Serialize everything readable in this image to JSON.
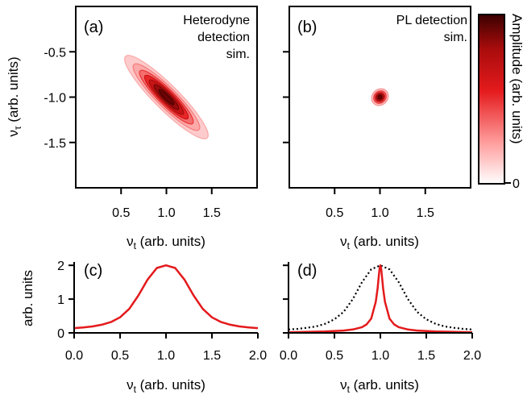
{
  "chart_data": [
    {
      "panel": "(a)",
      "type": "contour",
      "annotation": [
        "Heterodyne",
        "detection",
        "sim."
      ],
      "xlabel": {
        "sym": "ν",
        "sub": "t",
        "unit": " (arb. units)"
      },
      "ylabel": {
        "sym": "ν",
        "sub": "τ",
        "unit": " (arb. units)"
      },
      "xlim": [
        0,
        2
      ],
      "ylim": [
        -2,
        0
      ],
      "xticks": [
        0.5,
        1.0,
        1.5
      ],
      "xtick_labels": [
        "0.5",
        "1.0",
        "1.5"
      ],
      "yticks": [
        -0.5,
        -1.0,
        -1.5
      ],
      "ytick_labels": [
        "-0.5",
        "-1.0",
        "-1.5"
      ],
      "peak": {
        "x": 1.0,
        "y": -1.0
      },
      "diagonal_halfwidth": 0.45,
      "antidiagonal_halfwidth": 0.06,
      "contour_levels": [
        0.08,
        0.2,
        0.35,
        0.5,
        0.65,
        0.8,
        0.92
      ]
    },
    {
      "panel": "(b)",
      "type": "contour",
      "annotation": [
        "PL detection",
        "sim."
      ],
      "xlabel": {
        "sym": "ν",
        "sub": "t",
        "unit": " (arb. units)"
      },
      "xlim": [
        0,
        2
      ],
      "ylim": [
        -2,
        0
      ],
      "xticks": [
        0.5,
        1.0,
        1.5
      ],
      "xtick_labels": [
        "0.5",
        "1.0",
        "1.5"
      ],
      "yticks": [
        -0.5,
        -1.0,
        -1.5
      ],
      "peak": {
        "x": 1.0,
        "y": -1.0
      },
      "diagonal_halfwidth": 0.07,
      "antidiagonal_halfwidth": 0.05,
      "contour_levels": [
        0.15,
        0.35,
        0.55,
        0.75,
        0.92
      ]
    },
    {
      "panel": "(c)",
      "type": "line",
      "ylabel": "arb. units",
      "xlabel": {
        "sym": "ν",
        "sub": "t",
        "unit": " (arb. units)"
      },
      "xlim": [
        0,
        2
      ],
      "ylim": [
        0,
        2.1
      ],
      "xticks": [
        0,
        0.5,
        1.0,
        1.5,
        2.0
      ],
      "xtick_labels": [
        "0.0",
        "0.5",
        "1.0",
        "1.5",
        "2.0"
      ],
      "yticks": [
        0,
        1,
        2
      ],
      "ytick_labels": [
        "0",
        "1",
        "2"
      ],
      "series": [
        {
          "style": "solid",
          "color": "#e41a1c",
          "x": [
            0,
            0.1,
            0.2,
            0.3,
            0.4,
            0.5,
            0.6,
            0.7,
            0.8,
            0.9,
            1.0,
            1.1,
            1.2,
            1.3,
            1.4,
            1.5,
            1.6,
            1.7,
            1.8,
            1.9,
            2.0
          ],
          "y": [
            0.14,
            0.16,
            0.19,
            0.24,
            0.32,
            0.46,
            0.71,
            1.11,
            1.58,
            1.92,
            2.0,
            1.92,
            1.58,
            1.11,
            0.71,
            0.46,
            0.32,
            0.24,
            0.19,
            0.16,
            0.14
          ]
        }
      ]
    },
    {
      "panel": "(d)",
      "type": "line",
      "xlabel": {
        "sym": "ν",
        "sub": "t",
        "unit": " (arb. units)"
      },
      "xlim": [
        0,
        2
      ],
      "ylim": [
        0,
        2.1
      ],
      "xticks": [
        0,
        0.5,
        1.0,
        1.5,
        2.0
      ],
      "xtick_labels": [
        "0.0",
        "0.5",
        "1.0",
        "1.5",
        "2.0"
      ],
      "yticks": [
        0,
        1,
        2
      ],
      "series": [
        {
          "style": "dotted",
          "color": "#000000",
          "x": [
            0,
            0.1,
            0.2,
            0.3,
            0.4,
            0.5,
            0.6,
            0.7,
            0.8,
            0.9,
            1.0,
            1.1,
            1.2,
            1.3,
            1.4,
            1.5,
            1.6,
            1.7,
            1.8,
            1.9,
            2.0
          ],
          "y": [
            0.1,
            0.12,
            0.15,
            0.19,
            0.27,
            0.4,
            0.62,
            1.0,
            1.5,
            1.88,
            2.0,
            1.88,
            1.5,
            1.0,
            0.62,
            0.4,
            0.27,
            0.19,
            0.15,
            0.12,
            0.1
          ]
        },
        {
          "style": "solid",
          "color": "#e41a1c",
          "x": [
            0,
            0.2,
            0.4,
            0.6,
            0.7,
            0.8,
            0.85,
            0.9,
            0.95,
            0.97,
            0.98,
            0.99,
            1.0,
            1.01,
            1.02,
            1.03,
            1.05,
            1.1,
            1.15,
            1.2,
            1.3,
            1.4,
            1.6,
            1.8,
            2.0
          ],
          "y": [
            0.02,
            0.03,
            0.04,
            0.07,
            0.1,
            0.17,
            0.25,
            0.42,
            0.92,
            1.32,
            1.6,
            1.88,
            2.0,
            1.88,
            1.6,
            1.32,
            0.92,
            0.42,
            0.25,
            0.17,
            0.1,
            0.07,
            0.04,
            0.03,
            0.02
          ]
        }
      ]
    }
  ],
  "colorbar": {
    "label": "Amplitude (arb. units)",
    "tick_labels": [
      "0"
    ],
    "colors": [
      "#ffffff",
      "#ff9a9a",
      "#e41a1c",
      "#a80c0c",
      "#3a0000"
    ]
  }
}
